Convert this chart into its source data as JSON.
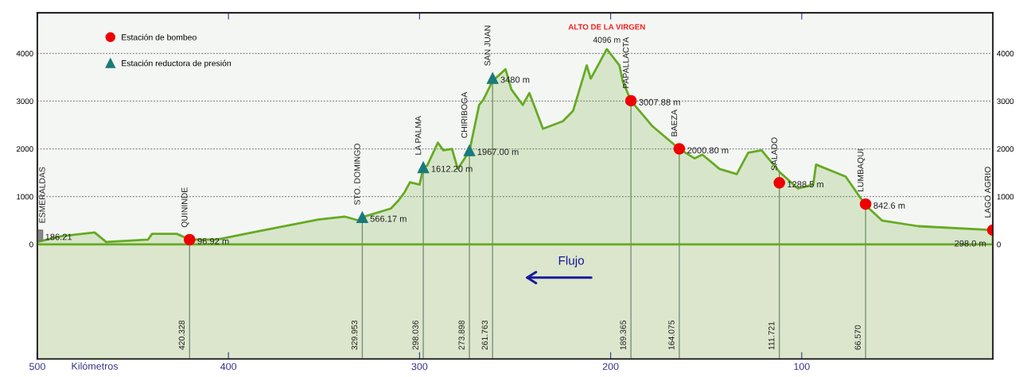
{
  "chart_data": {
    "type": "area",
    "xlabel": "Kilómetros",
    "xlim": [
      500,
      0
    ],
    "xticks": [
      500,
      400,
      300,
      200,
      100
    ],
    "ylim": [
      -2400,
      4850
    ],
    "yticks": [
      0,
      1000,
      2000,
      3000,
      4000
    ],
    "y2lim": [
      -2400,
      4850
    ],
    "y2ticks": [
      0,
      1000,
      2000,
      3000,
      4000
    ],
    "grid": "y",
    "legend": "top left",
    "series": [
      {
        "color": "#66aa22",
        "x": [
          500,
          487.5,
          470,
          464,
          442,
          440,
          427,
          420.3,
          406,
          387.5,
          353,
          339,
          332,
          329.9,
          315,
          311,
          308,
          305,
          300,
          298,
          296,
          290.4,
          287.5,
          283,
          280,
          273.9,
          268.8,
          266.7,
          261.8,
          255,
          252,
          246,
          242.5,
          235.4,
          225,
          219.6,
          212.5,
          210.4,
          207,
          202,
          195.4,
          193.7,
          189.4,
          178,
          164.1,
          156,
          152,
          143,
          134,
          128,
          121,
          111.7,
          102,
          94,
          92.5,
          77,
          66.6,
          58,
          39,
          0
        ],
        "values": [
          50,
          170,
          250,
          50,
          100,
          220,
          220,
          100,
          100,
          250,
          520,
          580,
          500,
          570,
          750,
          920,
          1080,
          1300,
          1250,
          1600,
          1650,
          2130,
          1970,
          2000,
          1580,
          1950,
          2920,
          3020,
          3420,
          3670,
          3250,
          2920,
          3170,
          2420,
          2580,
          2800,
          3750,
          3470,
          3720,
          4090,
          3750,
          3420,
          3010,
          2470,
          2000,
          1800,
          1880,
          1580,
          1470,
          1920,
          1970,
          1520,
          1170,
          1250,
          1670,
          1420,
          820,
          500,
          380,
          300
        ]
      },
      {
        "type": "scatter",
        "color": "#888888",
        "marker": "square",
        "x": [
          500
        ],
        "values": [
          186.21
        ],
        "value_labels": [
          "186.21"
        ]
      },
      {
        "type": "scatter",
        "name": "Estación de bombeo",
        "color": "#ee0000",
        "marker": "circle",
        "x": [
          420.328,
          189.365,
          164.075,
          111.721,
          66.57,
          0
        ],
        "values": [
          96.92,
          3007.88,
          2000.8,
          1288.5,
          842.6,
          298.0
        ],
        "value_labels": [
          "96.92 m",
          "3007.88 m",
          "2000.80 m",
          "1288.5 m",
          "842.6 m",
          "298.0 m"
        ]
      },
      {
        "type": "scatter",
        "name": "Estación reductora de presión",
        "color": "#1a7a7a",
        "marker": "triangle",
        "x": [
          329.953,
          298.036,
          273.898,
          261.763
        ],
        "values": [
          566.17,
          1612.2,
          1967.0,
          3480
        ],
        "value_labels": [
          "566.17 m",
          "1612.20 m",
          "1967.00 m",
          "3480 m"
        ]
      }
    ],
    "bands": [
      {
        "axis": "y",
        "from": -2400,
        "to": 0,
        "color": "#dbe6cc"
      }
    ],
    "ref_lines": [
      {
        "axis": "x",
        "value": 420.328,
        "label": "420.328",
        "color": "#7f8f7f"
      },
      {
        "axis": "x",
        "value": 329.953,
        "label": "329.953",
        "color": "#7f8f7f"
      },
      {
        "axis": "x",
        "value": 298.036,
        "label": "298.036",
        "color": "#7f8f7f"
      },
      {
        "axis": "x",
        "value": 273.898,
        "label": "273.898",
        "color": "#7f8f7f"
      },
      {
        "axis": "x",
        "value": 261.763,
        "label": "261.763",
        "color": "#7f8f7f"
      },
      {
        "axis": "x",
        "value": 189.365,
        "label": "189.365",
        "color": "#7f8f7f"
      },
      {
        "axis": "x",
        "value": 164.075,
        "label": "164.075",
        "color": "#7f8f7f"
      },
      {
        "axis": "x",
        "value": 111.721,
        "label": "111.721",
        "color": "#7f8f7f"
      },
      {
        "axis": "x",
        "value": 66.57,
        "label": "66.570",
        "color": "#7f8f7f"
      }
    ],
    "annotations": [
      {
        "text": "ESMERALDAS",
        "x": 500,
        "y": 186.21
      },
      {
        "text": "QUININDE",
        "x": 420.328,
        "y": 96.92
      },
      {
        "text": "STO. DOMINGO",
        "x": 329.953,
        "y": 566.17
      },
      {
        "text": "LA PALMA",
        "x": 298.036,
        "y": 1612.2
      },
      {
        "text": "CHIRIBOGA",
        "x": 273.898,
        "y": 1967.0
      },
      {
        "text": "SAN JUAN",
        "x": 261.763,
        "y": 3480
      },
      {
        "text": "PAPALLACTA",
        "x": 189.365,
        "y": 3007.88
      },
      {
        "text": "BAEZA",
        "x": 164.075,
        "y": 2000.8
      },
      {
        "text": "SALADO",
        "x": 111.721,
        "y": 1288.5
      },
      {
        "text": "LUMBAQUI",
        "x": 66.57,
        "y": 842.6
      },
      {
        "text": "LAGO AGRIO",
        "x": 0,
        "y": 298.0
      },
      {
        "text": "4096 m",
        "x": 202,
        "y": 4096
      },
      {
        "text": "ALTO DE LA VIRGEN",
        "x": 202,
        "y": 4096
      },
      "Flujo"
    ]
  }
}
